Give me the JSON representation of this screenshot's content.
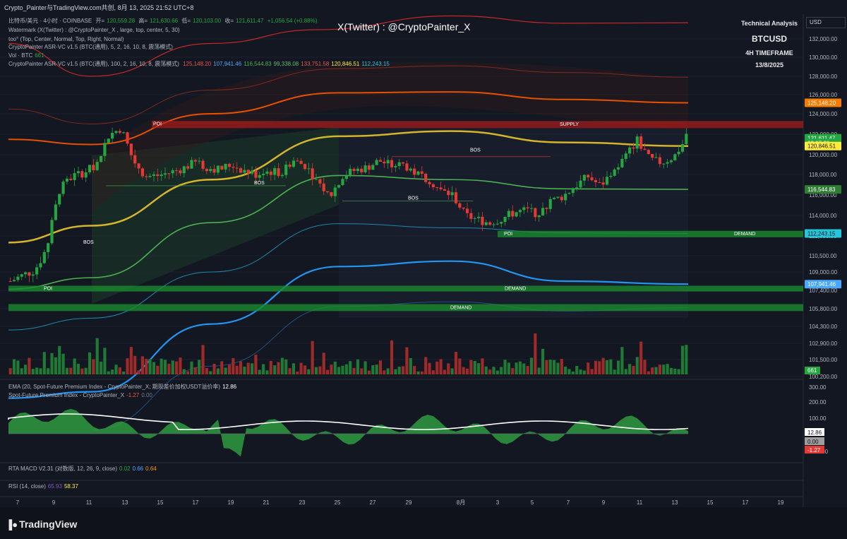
{
  "header": {
    "title": "Crypto_Painter与TradingView.com共创, 8月 13, 2025 21:52 UTC+8",
    "symbol_line": "比特币/美元 · 4小时 · COINBASE",
    "ohlc": {
      "o_label": "开=",
      "o": "120,559.28",
      "h_label": "高=",
      "h": "121,630.66",
      "l_label": "低=",
      "l": "120,103.00",
      "c_label": "收=",
      "c": "121,611.47",
      "chg": "+1,056.54 (+0.88%)"
    },
    "indicators": [
      "Watermark (X(Twitter) : @CryptoPainter_X , large, top, center, 5, 30)",
      "too° (Top, Center, Normal, Top, Right, Normal)",
      "CryptoPainter ASR-VC v1.5 (BTC(通用), 5, 2, 16, 10, 8, 震荡模式)",
      "Vol · BTC",
      "CryptoPainter ASR-VC v1.5 (BTC(通用), 100, 2, 16, 10, 8, 震荡模式)"
    ],
    "vol_value": "661",
    "asr_values": [
      {
        "v": "125,148.20",
        "color": "#ef5350"
      },
      {
        "v": "107,941.46",
        "color": "#4aa8ff"
      },
      {
        "v": "116,544.83",
        "color": "#4caf50"
      },
      {
        "v": "99,338.08",
        "color": "#66bb6a"
      },
      {
        "v": "133,751.58",
        "color": "#ef5350"
      },
      {
        "v": "120,846.51",
        "color": "#ffeb3b"
      },
      {
        "v": "112,243.15",
        "color": "#26c6da"
      }
    ]
  },
  "watermark": "X(Twitter) : @CryptoPainter_X",
  "info_box": {
    "line1": "Technical Analysis",
    "line2": "BTCUSD",
    "line3": "4H TIMEFRAME",
    "line4": "13/8/2025"
  },
  "zones": {
    "supply": "SUPPLY",
    "demand1": "DEMAND",
    "demand2": "DEMAND",
    "demand3": "DEMAND",
    "poi1": "POI",
    "poi2": "POI",
    "poi3": "POI",
    "bos1": "BOS",
    "bos2": "BOS",
    "bos3": "BOS",
    "bos4": "BOS"
  },
  "price_labels": [
    {
      "v": "125,148.20",
      "bg": "#f57c00",
      "price": 125148.2
    },
    {
      "v": "121,611.47",
      "bg": "#26a641",
      "price": 121611.47
    },
    {
      "v": "02:07:28",
      "bg": "#26a641",
      "price": 121150
    },
    {
      "v": "120,846.51",
      "bg": "#ffeb3b",
      "price": 120846.51
    },
    {
      "v": "116,544.83",
      "bg": "#2e7d32",
      "price": 116544.83
    },
    {
      "v": "112,243.15",
      "bg": "#26c6da",
      "price": 112243.15
    },
    {
      "v": "107,941.46",
      "bg": "#4aa8ff",
      "price": 107941.46
    }
  ],
  "lower": {
    "ema_label": "EMA (20, Spot-Future Premium Index - CryptoPainter_X; 期现差价加权USDT溢价率)",
    "ema_value": "12.86",
    "spfi_label": "Spot-Future Premium Index - CryptoPainter_X",
    "spfi_v1": "-1.27",
    "spfi_v2": "0.00",
    "macd_label": "RTA MACD V2.31 (对数版, 12, 26, 9, close)",
    "macd_v1": "0.02",
    "macd_v2": "0.66",
    "macd_v3": "0.64",
    "rsi_label": "RSI (14, close)",
    "rsi_v1": "65.93",
    "rsi_v2": "58.37",
    "vol_badge": "661",
    "osc_ticks": [
      "300.00",
      "200.00",
      "100.00",
      "-100.00"
    ],
    "osc_badges": [
      "12.86",
      "0.00",
      "-1.27"
    ]
  },
  "currency": "USD",
  "footer_brand": "TradingView",
  "chart_data": {
    "type": "candlestick",
    "symbol": "BTCUSD",
    "timeframe": "4h",
    "y_axis_ticks": [
      132000,
      130000,
      128000,
      126000,
      124000,
      122000,
      120000,
      118000,
      116000,
      114000,
      112000,
      110500,
      109000,
      107400,
      105800,
      104300,
      102900,
      101500,
      100200
    ],
    "y_tick_labels": [
      "132,000.00",
      "130,000.00",
      "128,000.00",
      "126,000.00",
      "124,000.00",
      "122,000.00",
      "120,000.00",
      "118,000.00",
      "116,000.00",
      "114,000.00",
      "112,000.00",
      "110,500.00",
      "109,000.00",
      "107,400.00",
      "105,800.00",
      "104,300.00",
      "102,900.00",
      "101,500.00",
      "100,200.00"
    ],
    "x_labels": [
      "7",
      "9",
      "11",
      "13",
      "15",
      "17",
      "19",
      "21",
      "23",
      "25",
      "27",
      "29",
      "8月",
      "3",
      "5",
      "7",
      "9",
      "11",
      "13",
      "15",
      "17",
      "19"
    ],
    "close_path": [
      108200,
      108700,
      109200,
      111200,
      116500,
      117800,
      118200,
      119000,
      121900,
      122600,
      119500,
      117800,
      117900,
      118200,
      118600,
      119200,
      118700,
      118500,
      119000,
      118400,
      118000,
      118300,
      118200,
      119400,
      118900,
      117300,
      115800,
      117900,
      118400,
      118700,
      119400,
      118900,
      119000,
      118100,
      117600,
      116400,
      116000,
      114000,
      113600,
      113300,
      113700,
      114300,
      114500,
      114200,
      115400,
      115900,
      116900,
      117800,
      116900,
      118200,
      119700,
      121500,
      119500,
      119200,
      119800,
      121611
    ],
    "zones": {
      "supply": [
        122600,
        123300
      ],
      "demand_112k": [
        111900,
        112500
      ],
      "demand_108k": [
        107300,
        107800
      ],
      "demand_106k": [
        105600,
        106200
      ]
    },
    "bands": {
      "yellow_mid": 120846.51,
      "orange_upper": 125148.2,
      "red_top": 133751.58,
      "green_mid": 116544.83,
      "cyan_lower": 112243.15,
      "blue_lower": 107941.46,
      "green_low": 99338.08
    },
    "colors": {
      "up": "#26a641",
      "down": "#e53935",
      "bg": "#131722",
      "grid": "#1e222d"
    }
  }
}
